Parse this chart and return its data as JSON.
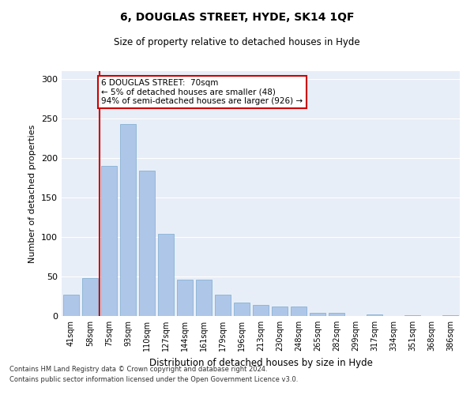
{
  "title": "6, DOUGLAS STREET, HYDE, SK14 1QF",
  "subtitle": "Size of property relative to detached houses in Hyde",
  "xlabel": "Distribution of detached houses by size in Hyde",
  "ylabel": "Number of detached properties",
  "categories": [
    "41sqm",
    "58sqm",
    "75sqm",
    "93sqm",
    "110sqm",
    "127sqm",
    "144sqm",
    "161sqm",
    "179sqm",
    "196sqm",
    "213sqm",
    "230sqm",
    "248sqm",
    "265sqm",
    "282sqm",
    "299sqm",
    "317sqm",
    "334sqm",
    "351sqm",
    "368sqm",
    "386sqm"
  ],
  "values": [
    27,
    48,
    190,
    243,
    184,
    104,
    46,
    46,
    27,
    17,
    14,
    12,
    12,
    4,
    4,
    0,
    2,
    0,
    1,
    0,
    1
  ],
  "bar_color": "#aec6e8",
  "bar_edge_color": "#7aabd0",
  "vline_color": "#cc0000",
  "vline_x": 1.5,
  "annotation_text": "6 DOUGLAS STREET:  70sqm\n← 5% of detached houses are smaller (48)\n94% of semi-detached houses are larger (926) →",
  "annotation_box_color": "#ffffff",
  "annotation_box_edgecolor": "#cc0000",
  "ylim": [
    0,
    310
  ],
  "yticks": [
    0,
    50,
    100,
    150,
    200,
    250,
    300
  ],
  "background_color": "#e8eef7",
  "grid_color": "#ffffff",
  "fig_background": "#ffffff",
  "footer_line1": "Contains HM Land Registry data © Crown copyright and database right 2024.",
  "footer_line2": "Contains public sector information licensed under the Open Government Licence v3.0."
}
